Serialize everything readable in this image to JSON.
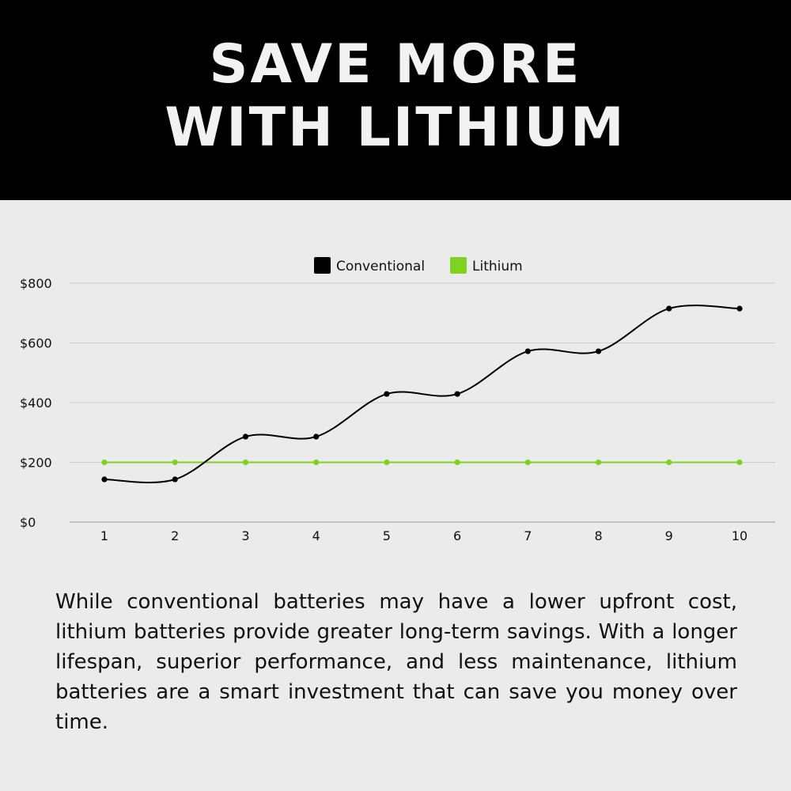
{
  "title": {
    "line1": "SAVE MORE",
    "line2": "WITH LITHIUM"
  },
  "chart_data": {
    "type": "line",
    "x": [
      1,
      2,
      3,
      4,
      5,
      6,
      7,
      8,
      9,
      10
    ],
    "x_tick_labels": [
      "1",
      "2",
      "3",
      "4",
      "5",
      "6",
      "7",
      "8",
      "9",
      "10"
    ],
    "y_tick_labels": [
      "$0",
      "$200",
      "$400",
      "$600",
      "$800"
    ],
    "y_ticks": [
      0,
      200,
      400,
      600,
      800
    ],
    "ylim": [
      0,
      800
    ],
    "grid": "horizontal",
    "legend_position": "top-center",
    "series": [
      {
        "name": "Conventional",
        "color": "#000000",
        "smooth": true,
        "values": [
          143,
          143,
          286,
          286,
          429,
          429,
          572,
          572,
          715,
          715
        ]
      },
      {
        "name": "Lithium",
        "color": "#7ed320",
        "smooth": false,
        "values": [
          200,
          200,
          200,
          200,
          200,
          200,
          200,
          200,
          200,
          200
        ]
      }
    ]
  },
  "description": "While conventional batteries may have a lower upfront cost, lithium batteries provide greater long-term savings. With a longer lifespan, superior performance, and less maintenance, lithium batteries are a smart investment that can save you money over time."
}
